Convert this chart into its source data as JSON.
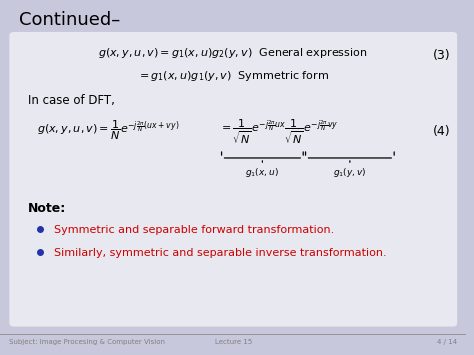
{
  "title": "Continued–",
  "slide_bg": "#c8c8dc",
  "box_bg": "#e8e8f0",
  "title_color": "#000000",
  "red_color": "#cc0000",
  "bullet_color": "#2233aa",
  "footer_left": "Subject: Image Procesing & Computer Vision",
  "footer_center": "Lecture 15",
  "footer_right": "4 / 14",
  "eq3_number": "(3)",
  "eq4_number": "(4)",
  "dft_label": "In case of DFT,",
  "note_label": "Note:",
  "bullet1": "Symmetric and separable forward transformation.",
  "bullet2": "Similarly, symmetric and separable inverse transformation."
}
